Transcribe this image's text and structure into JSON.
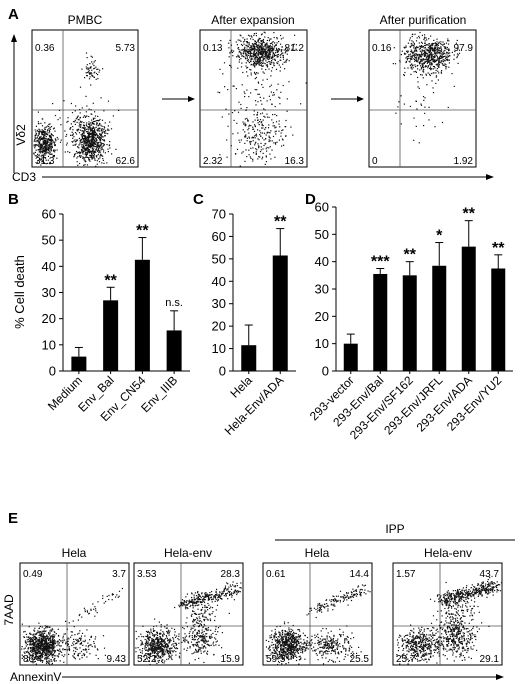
{
  "panel_labels": {
    "A": "A",
    "B": "B",
    "C": "C",
    "D": "D",
    "E": "E"
  },
  "panel_a": {
    "x_axis_label": "CD3",
    "y_axis_label": "Vδ2",
    "plots": [
      {
        "title": "PMBC",
        "q_ul": "0.36",
        "q_ur": "5.73",
        "q_ll": "31.3",
        "q_lr": "62.6"
      },
      {
        "title": "After expansion",
        "q_ul": "0.13",
        "q_ur": "81.2",
        "q_ll": "2.32",
        "q_lr": "16.3"
      },
      {
        "title": "After purification",
        "q_ul": "0.16",
        "q_ur": "97.9",
        "q_ll": "0",
        "q_lr": "1.92"
      }
    ]
  },
  "panel_e": {
    "x_axis_label": "AnnexinV",
    "y_axis_label": "7AAD",
    "group_label": "IPP",
    "plots": [
      {
        "title": "Hela",
        "q_ul": "0.49",
        "q_ur": "3.7",
        "q_ll": "86.4",
        "q_lr": "9.43"
      },
      {
        "title": "Hela-env",
        "q_ul": "3.53",
        "q_ur": "28.3",
        "q_ll": "52.2",
        "q_lr": "15.9"
      },
      {
        "title": "Hela",
        "q_ul": "0.61",
        "q_ur": "14.4",
        "q_ll": "59.5",
        "q_lr": "25.5"
      },
      {
        "title": "Hela-env",
        "q_ul": "1.57",
        "q_ur": "43.7",
        "q_ll": "25.7",
        "q_lr": "29.1"
      }
    ]
  },
  "chart_data": [
    {
      "panel": "B",
      "type": "bar",
      "ylabel": "% Cell death",
      "ylim": [
        0,
        60
      ],
      "yticks": [
        0,
        10,
        20,
        30,
        40,
        50,
        60
      ],
      "categories": [
        "Medium",
        "Env_Bal",
        "Env_CN54",
        "Env_IIIB"
      ],
      "values": [
        5.5,
        27,
        42.5,
        15.5
      ],
      "errors": [
        3.5,
        5,
        8.5,
        7.5
      ],
      "significance": [
        "",
        "**",
        "**",
        "n.s."
      ],
      "bar_color": "#000000"
    },
    {
      "panel": "C",
      "type": "bar",
      "ylim": [
        0,
        70
      ],
      "yticks": [
        0,
        10,
        20,
        30,
        40,
        50,
        60,
        70
      ],
      "categories": [
        "Hela",
        "Hela-Env/ADA"
      ],
      "values": [
        11.5,
        51.5
      ],
      "errors": [
        9,
        12
      ],
      "significance": [
        "",
        "**"
      ],
      "bar_color": "#000000"
    },
    {
      "panel": "D",
      "type": "bar",
      "ylim": [
        0,
        60
      ],
      "yticks": [
        0,
        10,
        20,
        30,
        40,
        50,
        60
      ],
      "categories": [
        "293-vector",
        "293-Env/Bal",
        "293-Env/SF162",
        "293-Env/JRFL",
        "293-Env/ADA",
        "293-Env/YU2"
      ],
      "values": [
        10,
        35.5,
        35,
        38.5,
        45.5,
        37.5
      ],
      "errors": [
        3.5,
        2,
        5,
        8.5,
        9.5,
        5
      ],
      "significance": [
        "",
        "***",
        "**",
        "*",
        "**",
        "**"
      ],
      "bar_color": "#000000"
    }
  ]
}
